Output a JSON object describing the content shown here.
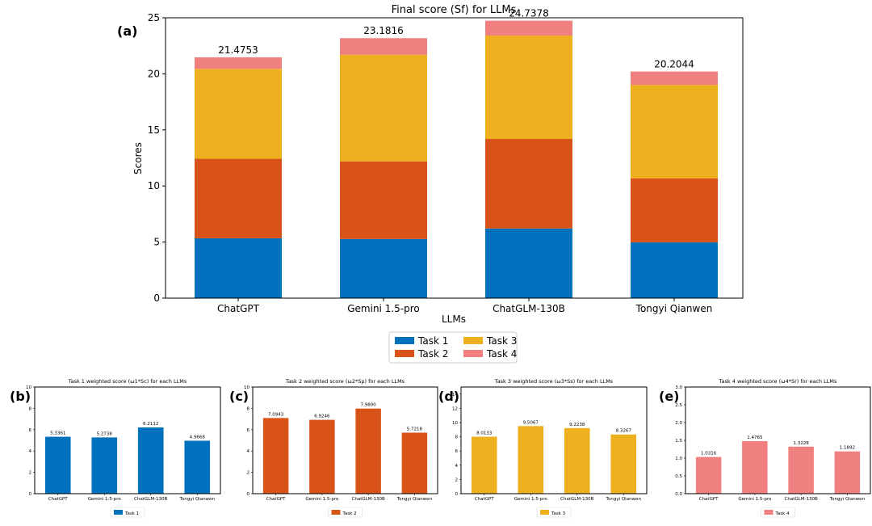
{
  "chart_data": [
    {
      "type": "bar",
      "stacked": true,
      "panel_label": "(a)",
      "title": "Final score (Sf) for LLMs",
      "xlabel": "LLMs",
      "ylabel": "Scores",
      "ylim": [
        0,
        25
      ],
      "yticks": [
        0,
        5,
        10,
        15,
        20,
        25
      ],
      "categories": [
        "ChatGPT",
        "Gemini 1.5-pro",
        "ChatGLM-130B",
        "Tongyi Qianwen"
      ],
      "series": [
        {
          "name": "Task 1",
          "color": "#0072BD",
          "values": [
            5.3361,
            5.2738,
            6.2112,
            4.9668
          ]
        },
        {
          "name": "Task 2",
          "color": "#D95319",
          "values": [
            7.0943,
            6.9246,
            7.98,
            5.7218
          ]
        },
        {
          "name": "Task 3",
          "color": "#EDB120",
          "values": [
            8.0133,
            9.5067,
            9.2238,
            8.3267
          ]
        },
        {
          "name": "Task 4",
          "color": "#F08080",
          "values": [
            1.0316,
            1.4765,
            1.3228,
            1.1892
          ]
        }
      ],
      "totals": [
        "21.4753",
        "23.1816",
        "24.7378",
        "20.2044"
      ],
      "legend": {
        "placement": "bottom-center",
        "entries": [
          "Task 1",
          "Task 2",
          "Task 3",
          "Task 4"
        ]
      }
    },
    {
      "type": "bar",
      "panel_label": "(b)",
      "title": "Task 1 weighted score (ω1*Sc) for each LLMs",
      "categories": [
        "ChatGPT",
        "Gemini 1.5-pro",
        "ChatGLM-130B",
        "Tongyi Qianwen"
      ],
      "values": [
        5.3361,
        5.2738,
        6.2112,
        4.9668
      ],
      "value_labels": [
        "5.3361",
        "5.2738",
        "6.2112",
        "4.9668"
      ],
      "color": "#0072BD",
      "ylim": [
        0,
        10
      ],
      "yticks": [
        0,
        2,
        4,
        6,
        8,
        10
      ],
      "legend": {
        "placement": "bottom-center",
        "entries": [
          "Task 1"
        ]
      }
    },
    {
      "type": "bar",
      "panel_label": "(c)",
      "title": "Task 2 weighted score (ω2*Sp) for each LLMs",
      "categories": [
        "ChatGPT",
        "Gemini 1.5-pro",
        "ChatGLM-130B",
        "Tongyi Qianwen"
      ],
      "values": [
        7.0943,
        6.9246,
        7.98,
        5.7218
      ],
      "value_labels": [
        "7.0943",
        "6.9246",
        "7.9800",
        "5.7218"
      ],
      "color": "#D95319",
      "ylim": [
        0,
        10
      ],
      "yticks": [
        0,
        2,
        4,
        6,
        8,
        10
      ],
      "legend": {
        "placement": "bottom-center",
        "entries": [
          "Task 2"
        ]
      }
    },
    {
      "type": "bar",
      "panel_label": "(d)",
      "title": "Task 3 weighted score (ω3*Ss) for each LLMs",
      "categories": [
        "ChatGPT",
        "Gemini 1.5-pro",
        "ChatGLM-130B",
        "Tongyi Qianwen"
      ],
      "values": [
        8.0133,
        9.5067,
        9.2238,
        8.3267
      ],
      "value_labels": [
        "8.0133",
        "9.5067",
        "9.2238",
        "8.3267"
      ],
      "color": "#EDB120",
      "ylim": [
        0,
        15
      ],
      "yticks": [
        0,
        2,
        4,
        6,
        8,
        10,
        12,
        14
      ],
      "legend": {
        "placement": "bottom-center",
        "entries": [
          "Task 3"
        ]
      }
    },
    {
      "type": "bar",
      "panel_label": "(e)",
      "title": "Task 4 weighted score (ω4*Sr) for each LLMs",
      "categories": [
        "ChatGPT",
        "Gemini 1.5-pro",
        "ChatGLM-130B",
        "Tongyi Qianwen"
      ],
      "values": [
        1.0316,
        1.4765,
        1.3228,
        1.1892
      ],
      "value_labels": [
        "1.0316",
        "1.4765",
        "1.3228",
        "1.1892"
      ],
      "color": "#F08080",
      "ylim": [
        0,
        3
      ],
      "yticks": [
        "0.0",
        "0.5",
        "1.0",
        "1.5",
        "2.0",
        "2.5",
        "3.0"
      ],
      "legend": {
        "placement": "bottom-center",
        "entries": [
          "Task 4"
        ]
      }
    }
  ]
}
